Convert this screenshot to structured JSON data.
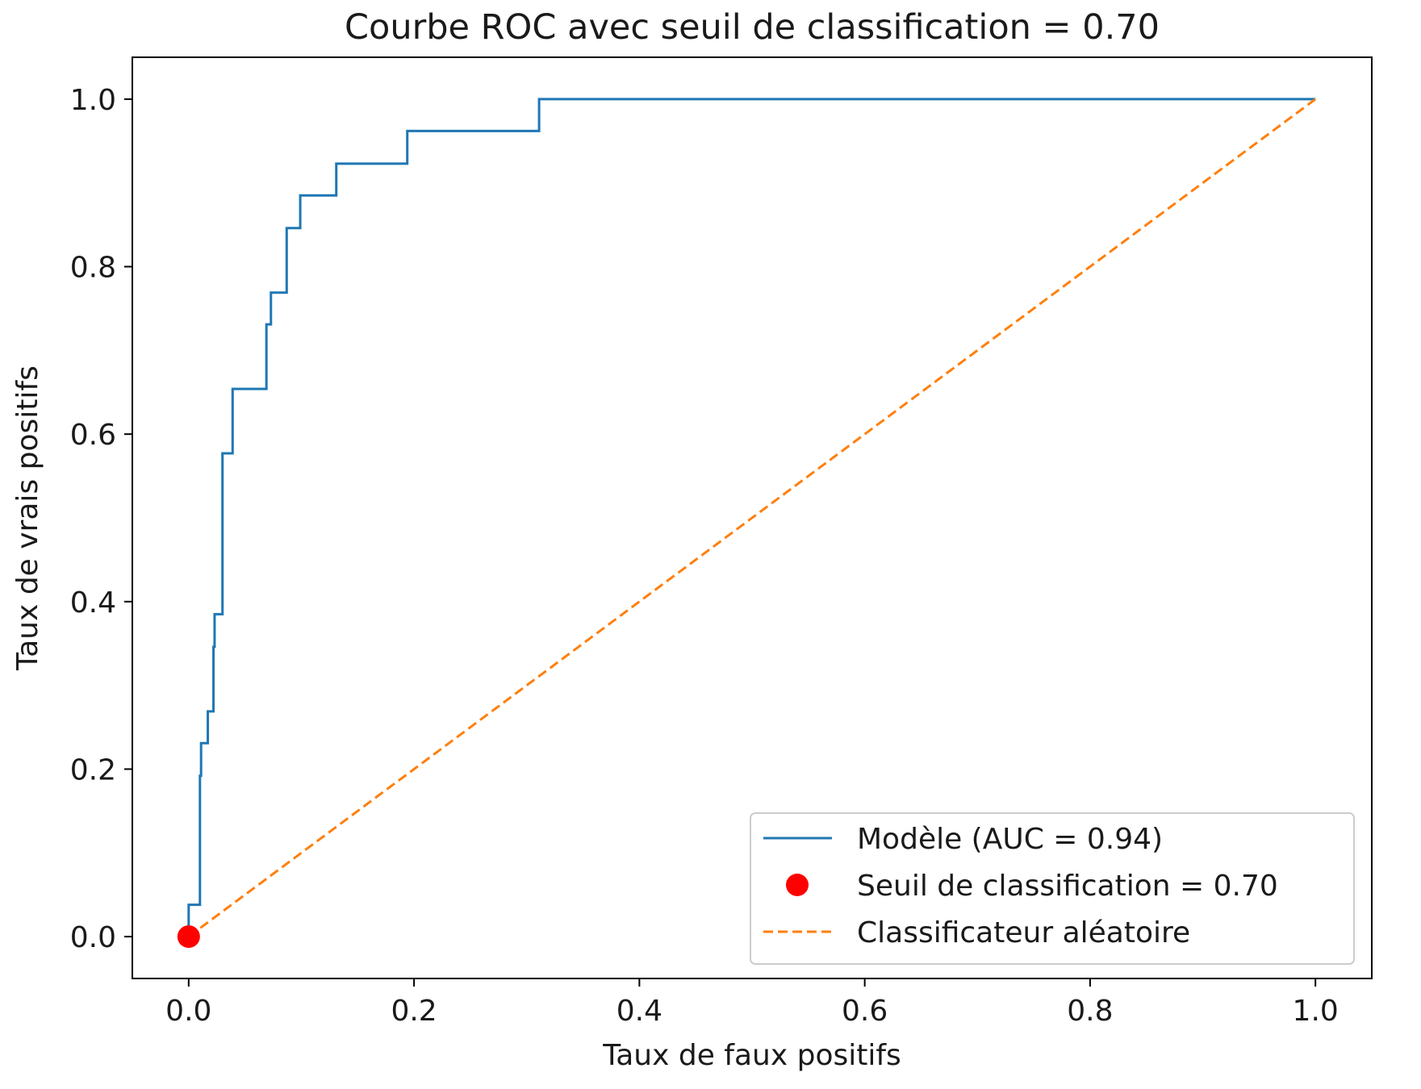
{
  "chart_data": {
    "type": "line",
    "title": "Courbe ROC avec seuil de classification = 0.70",
    "xlabel": "Taux de faux positifs",
    "ylabel": "Taux de vrais positifs",
    "xlim": [
      -0.05,
      1.05
    ],
    "ylim": [
      -0.05,
      1.05
    ],
    "xticks": [
      "0.0",
      "0.2",
      "0.4",
      "0.6",
      "0.8",
      "1.0"
    ],
    "yticks": [
      "0.0",
      "0.2",
      "0.4",
      "0.6",
      "0.8",
      "1.0"
    ],
    "grid": false,
    "legend_position": "lower-right",
    "series": [
      {
        "name": "Modèle (AUC = 0.94)",
        "kind": "line",
        "color": "#1f77b4",
        "x": [
          0.0,
          0.0,
          0.0,
          0.0,
          0.01,
          0.01,
          0.011,
          0.011,
          0.017,
          0.017,
          0.022,
          0.022,
          0.023,
          0.023,
          0.03,
          0.03,
          0.039,
          0.039,
          0.069,
          0.069,
          0.073,
          0.073,
          0.087,
          0.087,
          0.099,
          0.099,
          0.131,
          0.131,
          0.194,
          0.194,
          0.311,
          0.311,
          1.0
        ],
        "y": [
          0.0,
          0.0,
          0.038,
          0.038,
          0.038,
          0.192,
          0.192,
          0.231,
          0.231,
          0.269,
          0.269,
          0.346,
          0.346,
          0.385,
          0.385,
          0.577,
          0.577,
          0.654,
          0.654,
          0.731,
          0.731,
          0.769,
          0.769,
          0.846,
          0.846,
          0.885,
          0.885,
          0.923,
          0.923,
          0.962,
          0.962,
          1.0,
          1.0
        ]
      },
      {
        "name": "Seuil de classification = 0.70",
        "kind": "point",
        "color": "#ff0000",
        "x": [
          0.0
        ],
        "y": [
          0.0
        ]
      },
      {
        "name": "Classificateur aléatoire",
        "kind": "dashed-line",
        "color": "#ff7f0e",
        "x": [
          0.0,
          1.0
        ],
        "y": [
          0.0,
          1.0
        ]
      }
    ]
  }
}
